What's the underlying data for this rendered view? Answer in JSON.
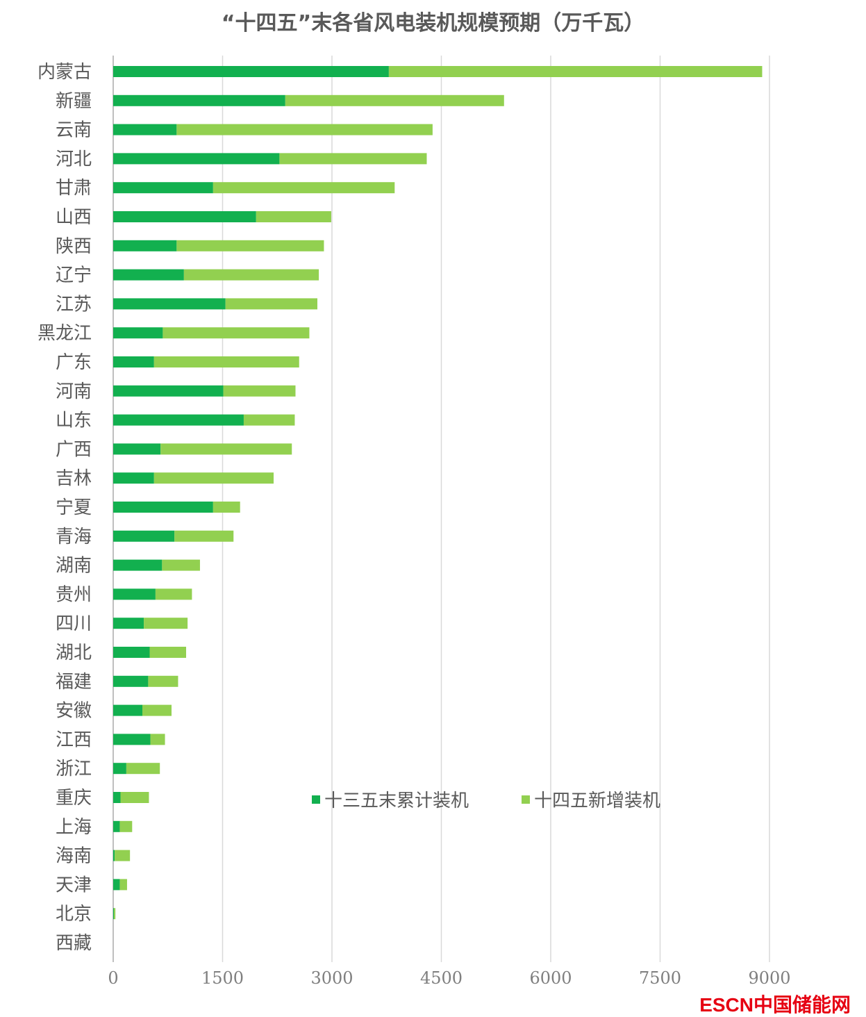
{
  "chart_data": {
    "type": "bar",
    "orientation": "horizontal",
    "stacked": true,
    "title": "“十四五”末各省风电装机规模预期（万千瓦）",
    "categories": [
      "内蒙古",
      "新疆",
      "云南",
      "河北",
      "甘肃",
      "山西",
      "陕西",
      "辽宁",
      "江苏",
      "黑龙江",
      "广东",
      "河南",
      "山东",
      "广西",
      "吉林",
      "宁夏",
      "青海",
      "湖南",
      "贵州",
      "四川",
      "湖北",
      "福建",
      "安徽",
      "江西",
      "浙江",
      "重庆",
      "上海",
      "海南",
      "天津",
      "北京",
      "西藏"
    ],
    "series": [
      {
        "name": "十三五末累计装机",
        "color": "#12b04f",
        "values": [
          3780,
          2360,
          870,
          2280,
          1370,
          1960,
          870,
          970,
          1540,
          680,
          560,
          1510,
          1790,
          650,
          560,
          1370,
          840,
          670,
          580,
          420,
          500,
          480,
          400,
          510,
          180,
          100,
          90,
          20,
          90,
          10,
          0
        ]
      },
      {
        "name": "十四五新增装机",
        "color": "#92d050",
        "values": [
          5120,
          3000,
          3510,
          2020,
          2490,
          1030,
          2020,
          1850,
          1260,
          2010,
          1990,
          990,
          700,
          1800,
          1640,
          370,
          810,
          520,
          500,
          600,
          500,
          410,
          400,
          200,
          460,
          390,
          170,
          210,
          100,
          20,
          0
        ]
      }
    ],
    "xlim": [
      0,
      9000
    ],
    "xticks": [
      "0",
      "1500",
      "3000",
      "4500",
      "6000",
      "7500",
      "9000"
    ],
    "grid": true,
    "legend_placement": "lower-right inside"
  },
  "logo": {
    "text": "ESCN中国储能网",
    "color": "#e60012"
  }
}
